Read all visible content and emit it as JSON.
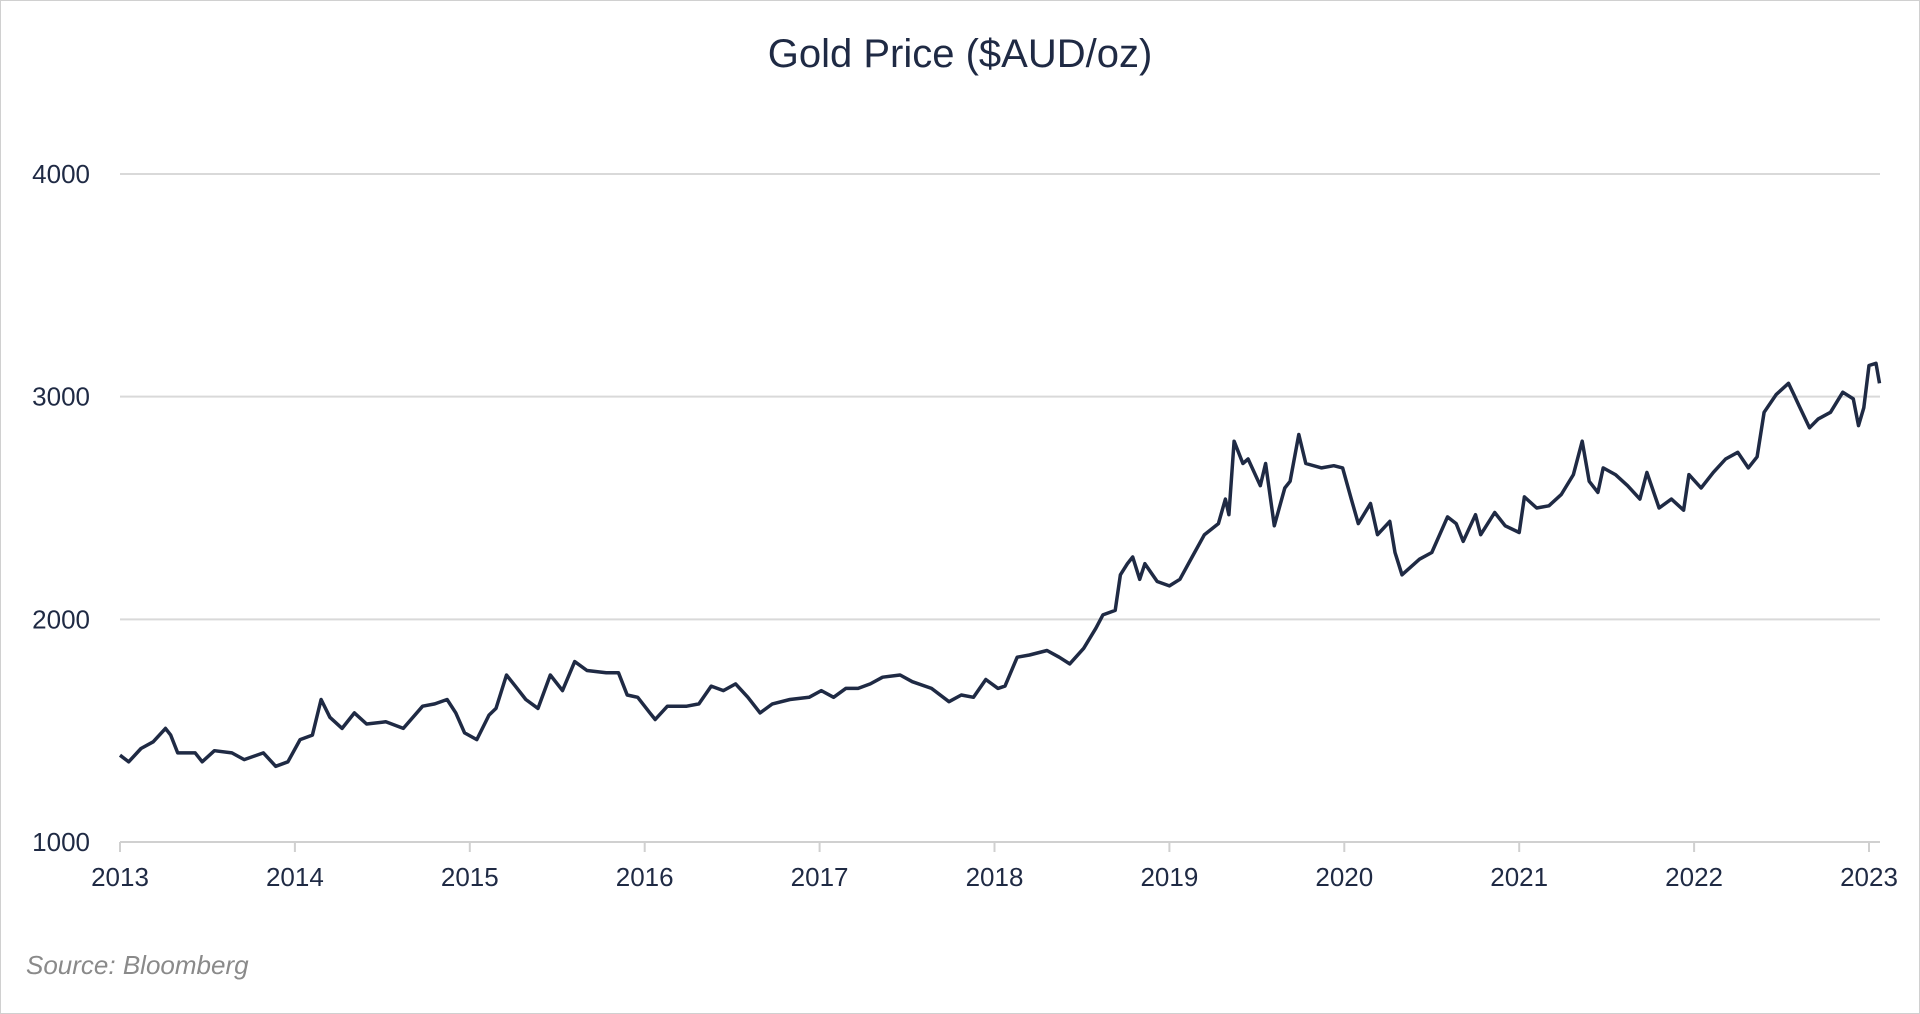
{
  "chart_data": {
    "type": "line",
    "title": "Gold Price ($AUD/oz)",
    "xlabel": "",
    "ylabel": "",
    "xlim": [
      2013,
      2023.06
    ],
    "ylim": [
      1000,
      4000
    ],
    "yticks": [
      1000,
      2000,
      3000,
      4000
    ],
    "xticks": [
      2013,
      2014,
      2015,
      2016,
      2017,
      2018,
      2019,
      2020,
      2021,
      2022,
      2023
    ],
    "grid": "horizontal",
    "line_color": "#1f2a44",
    "source": "Source: Bloomberg",
    "x": [
      2013.0,
      2013.05,
      2013.12,
      2013.19,
      2013.26,
      2013.29,
      2013.33,
      2013.43,
      2013.47,
      2013.54,
      2013.64,
      2013.71,
      2013.82,
      2013.89,
      2013.96,
      2014.03,
      2014.1,
      2014.15,
      2014.2,
      2014.27,
      2014.34,
      2014.41,
      2014.52,
      2014.62,
      2014.73,
      2014.8,
      2014.87,
      2014.92,
      2014.97,
      2015.04,
      2015.11,
      2015.15,
      2015.21,
      2015.26,
      2015.32,
      2015.39,
      2015.46,
      2015.53,
      2015.6,
      2015.67,
      2015.78,
      2015.85,
      2015.9,
      2015.96,
      2016.03,
      2016.06,
      2016.13,
      2016.24,
      2016.31,
      2016.38,
      2016.45,
      2016.52,
      2016.59,
      2016.66,
      2016.73,
      2016.83,
      2016.94,
      2017.01,
      2017.08,
      2017.15,
      2017.22,
      2017.29,
      2017.36,
      2017.46,
      2017.53,
      2017.64,
      2017.74,
      2017.81,
      2017.88,
      2017.95,
      2018.02,
      2018.06,
      2018.13,
      2018.2,
      2018.3,
      2018.37,
      2018.43,
      2018.51,
      2018.58,
      2018.62,
      2018.69,
      2018.72,
      2018.76,
      2018.79,
      2018.83,
      2018.86,
      2018.93,
      2019.0,
      2019.06,
      2019.13,
      2019.2,
      2019.28,
      2019.32,
      2019.34,
      2019.37,
      2019.42,
      2019.45,
      2019.52,
      2019.55,
      2019.6,
      2019.66,
      2019.69,
      2019.74,
      2019.78,
      2019.87,
      2019.94,
      2019.99,
      2020.04,
      2020.08,
      2020.15,
      2020.19,
      2020.26,
      2020.29,
      2020.33,
      2020.43,
      2020.5,
      2020.59,
      2020.64,
      2020.68,
      2020.75,
      2020.78,
      2020.86,
      2020.92,
      2021.0,
      2021.03,
      2021.1,
      2021.17,
      2021.24,
      2021.31,
      2021.36,
      2021.4,
      2021.45,
      2021.48,
      2021.55,
      2021.62,
      2021.69,
      2021.73,
      2021.8,
      2021.87,
      2021.94,
      2021.97,
      2022.04,
      2022.11,
      2022.18,
      2022.25,
      2022.31,
      2022.36,
      2022.4,
      2022.47,
      2022.54,
      2022.57,
      2022.6,
      2022.66,
      2022.71,
      2022.78,
      2022.85,
      2022.91,
      2022.94,
      2022.97,
      2023.0,
      2023.04,
      2023.06
    ],
    "values": [
      1390,
      1360,
      1420,
      1450,
      1510,
      1480,
      1400,
      1400,
      1360,
      1410,
      1400,
      1370,
      1400,
      1340,
      1360,
      1460,
      1480,
      1640,
      1560,
      1510,
      1580,
      1530,
      1540,
      1510,
      1610,
      1620,
      1640,
      1580,
      1490,
      1460,
      1570,
      1600,
      1750,
      1700,
      1640,
      1600,
      1750,
      1680,
      1810,
      1770,
      1760,
      1760,
      1660,
      1650,
      1580,
      1550,
      1610,
      1610,
      1620,
      1700,
      1680,
      1710,
      1650,
      1580,
      1620,
      1640,
      1650,
      1680,
      1650,
      1690,
      1690,
      1710,
      1740,
      1750,
      1720,
      1690,
      1630,
      1660,
      1650,
      1730,
      1690,
      1700,
      1830,
      1840,
      1860,
      1830,
      1800,
      1870,
      1960,
      2020,
      2040,
      2200,
      2250,
      2280,
      2180,
      2250,
      2170,
      2150,
      2180,
      2280,
      2380,
      2430,
      2540,
      2470,
      2800,
      2700,
      2720,
      2600,
      2700,
      2420,
      2590,
      2620,
      2830,
      2700,
      2680,
      2690,
      2680,
      2540,
      2430,
      2520,
      2380,
      2440,
      2300,
      2200,
      2270,
      2300,
      2460,
      2430,
      2350,
      2470,
      2380,
      2480,
      2420,
      2390,
      2550,
      2500,
      2510,
      2560,
      2650,
      2800,
      2620,
      2570,
      2680,
      2650,
      2600,
      2540,
      2660,
      2500,
      2540,
      2490,
      2650,
      2590,
      2660,
      2720,
      2750,
      2680,
      2730,
      2930,
      3010,
      3060,
      3010,
      2960,
      2860,
      2900,
      2930,
      3020,
      2990,
      2870,
      2950,
      3140,
      3150,
      3060
    ]
  }
}
